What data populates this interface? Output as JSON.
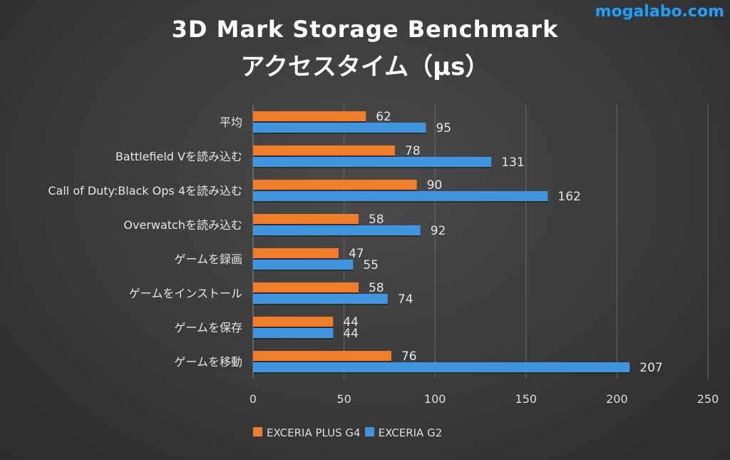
{
  "brand": "mogalabo.com",
  "chart_data": {
    "type": "bar",
    "orientation": "horizontal",
    "title": "3D Mark Storage Benchmark",
    "subtitle": "アクセスタイム（μs）",
    "categories": [
      "平均",
      "Battlefield Vを読み込む",
      "Call of Duty:Black Ops 4を読み込む",
      "Overwatchを読み込む",
      "ゲームを録画",
      "ゲームをインストール",
      "ゲームを保存",
      "ゲームを移動"
    ],
    "series": [
      {
        "name": "EXCERIA PLUS G4",
        "color": "#f07d2a",
        "values": [
          62,
          78,
          90,
          58,
          47,
          58,
          44,
          76
        ]
      },
      {
        "name": "EXCERIA G2",
        "color": "#3f95e0",
        "values": [
          95,
          131,
          162,
          92,
          55,
          74,
          44,
          207
        ]
      }
    ],
    "xlim": [
      0,
      250
    ],
    "xticks": [
      0,
      50,
      100,
      150,
      200,
      250
    ],
    "grid": true,
    "legend": "bottom"
  }
}
